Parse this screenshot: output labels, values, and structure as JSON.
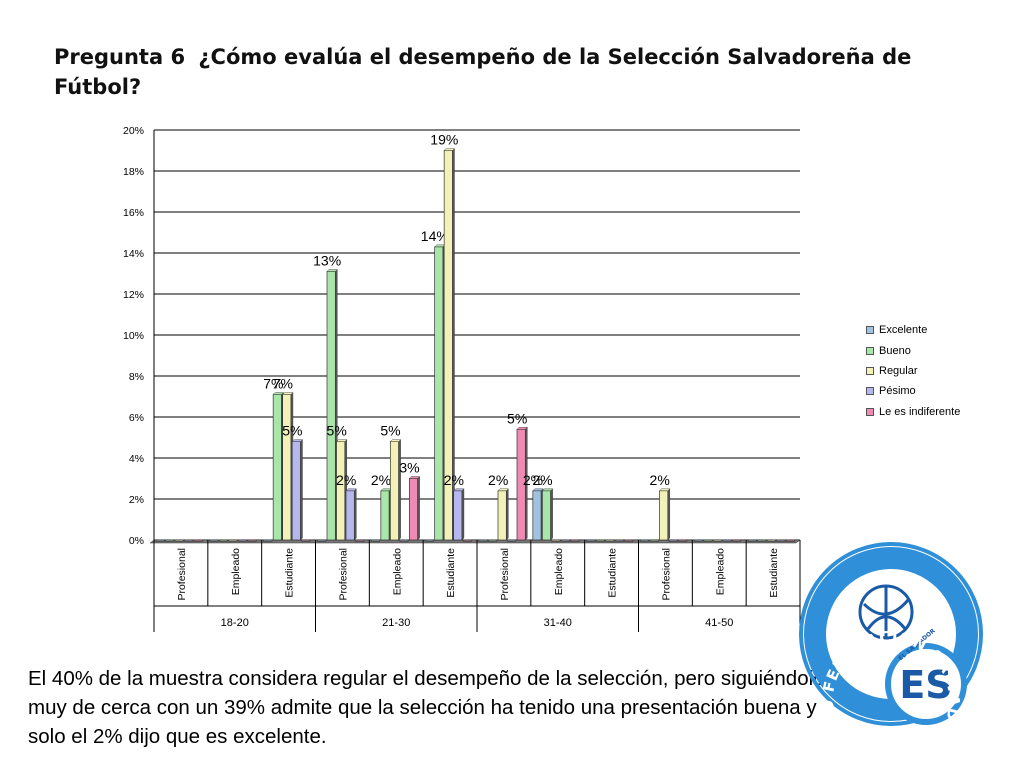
{
  "header": {
    "question_number": "Pregunta 6",
    "question_text": "¿Cómo evalúa el desempeño de la Selección Salvadoreña de Fútbol?"
  },
  "chart_data": {
    "type": "bar",
    "title": "",
    "xlabel": "",
    "ylabel": "",
    "ylim": [
      0,
      20
    ],
    "y_ticks": [
      "0%",
      "2%",
      "4%",
      "6%",
      "8%",
      "10%",
      "12%",
      "14%",
      "16%",
      "18%",
      "20%"
    ],
    "grid": true,
    "legend_position": "right",
    "categories": [
      "Profesional",
      "Empleado",
      "Estudiante",
      "Profesional",
      "Empleado",
      "Estudiante",
      "Profesional",
      "Empleado",
      "Estudiante",
      "Profesional",
      "Empleado",
      "Estudiante"
    ],
    "groups": [
      {
        "label": "18-20",
        "span": 3
      },
      {
        "label": "21-30",
        "span": 3
      },
      {
        "label": "31-40",
        "span": 3
      },
      {
        "label": "41-50",
        "span": 3
      }
    ],
    "series": [
      {
        "name": "Excelente",
        "color": "#9fc3e0",
        "values": [
          0,
          0,
          0,
          0,
          0,
          0,
          0,
          2.4,
          0,
          0,
          0,
          0
        ],
        "labels": [
          "",
          "",
          "",
          "",
          "",
          "",
          "",
          "2%",
          "",
          "",
          "",
          ""
        ]
      },
      {
        "name": "Bueno",
        "color": "#a9e6a9",
        "values": [
          0,
          0,
          7.1,
          13.1,
          2.4,
          14.3,
          0,
          2.4,
          0,
          0,
          0,
          0
        ],
        "labels": [
          "",
          "",
          "7%",
          "13%",
          "2%",
          "14%",
          "",
          "2%",
          "",
          "",
          "",
          ""
        ]
      },
      {
        "name": "Regular",
        "color": "#f2f2b8",
        "values": [
          0,
          0,
          7.1,
          4.8,
          4.8,
          19.0,
          2.4,
          0,
          0,
          2.4,
          0,
          0
        ],
        "labels": [
          "",
          "",
          "7%",
          "5%",
          "5%",
          "19%",
          "2%",
          "",
          "",
          "2%",
          "",
          ""
        ]
      },
      {
        "name": "Pésimo",
        "color": "#b4b8ee",
        "values": [
          0,
          0,
          4.8,
          2.4,
          0,
          2.4,
          0,
          0,
          0,
          0,
          0,
          0
        ],
        "labels": [
          "",
          "",
          "5%",
          "2%",
          "",
          "2%",
          "",
          "",
          "",
          "",
          "",
          ""
        ]
      },
      {
        "name": "Le es indiferente",
        "color": "#ef8bb2",
        "values": [
          0,
          0,
          0,
          0,
          3.0,
          0,
          5.4,
          0,
          0,
          0,
          0,
          0
        ],
        "labels": [
          "",
          "",
          "",
          "",
          "3%",
          "",
          "5%",
          "",
          "",
          "",
          "",
          ""
        ]
      }
    ]
  },
  "caption": "El 40% de la muestra considera regular el desempeño de la selección, pero siguiéndolo muy de cerca con un 39% admite que la selección ha tenido una presentación buena y solo el 2% dijo que es excelente.",
  "logo": {
    "name": "federation-logo",
    "ring_text": "FEDERACION SALVADOREÑA DE FUTBOL",
    "small_text": "EL SALVADOR",
    "monogram": "ES",
    "color_primary": "#2f8fd8",
    "color_dark": "#1a5aa6"
  }
}
